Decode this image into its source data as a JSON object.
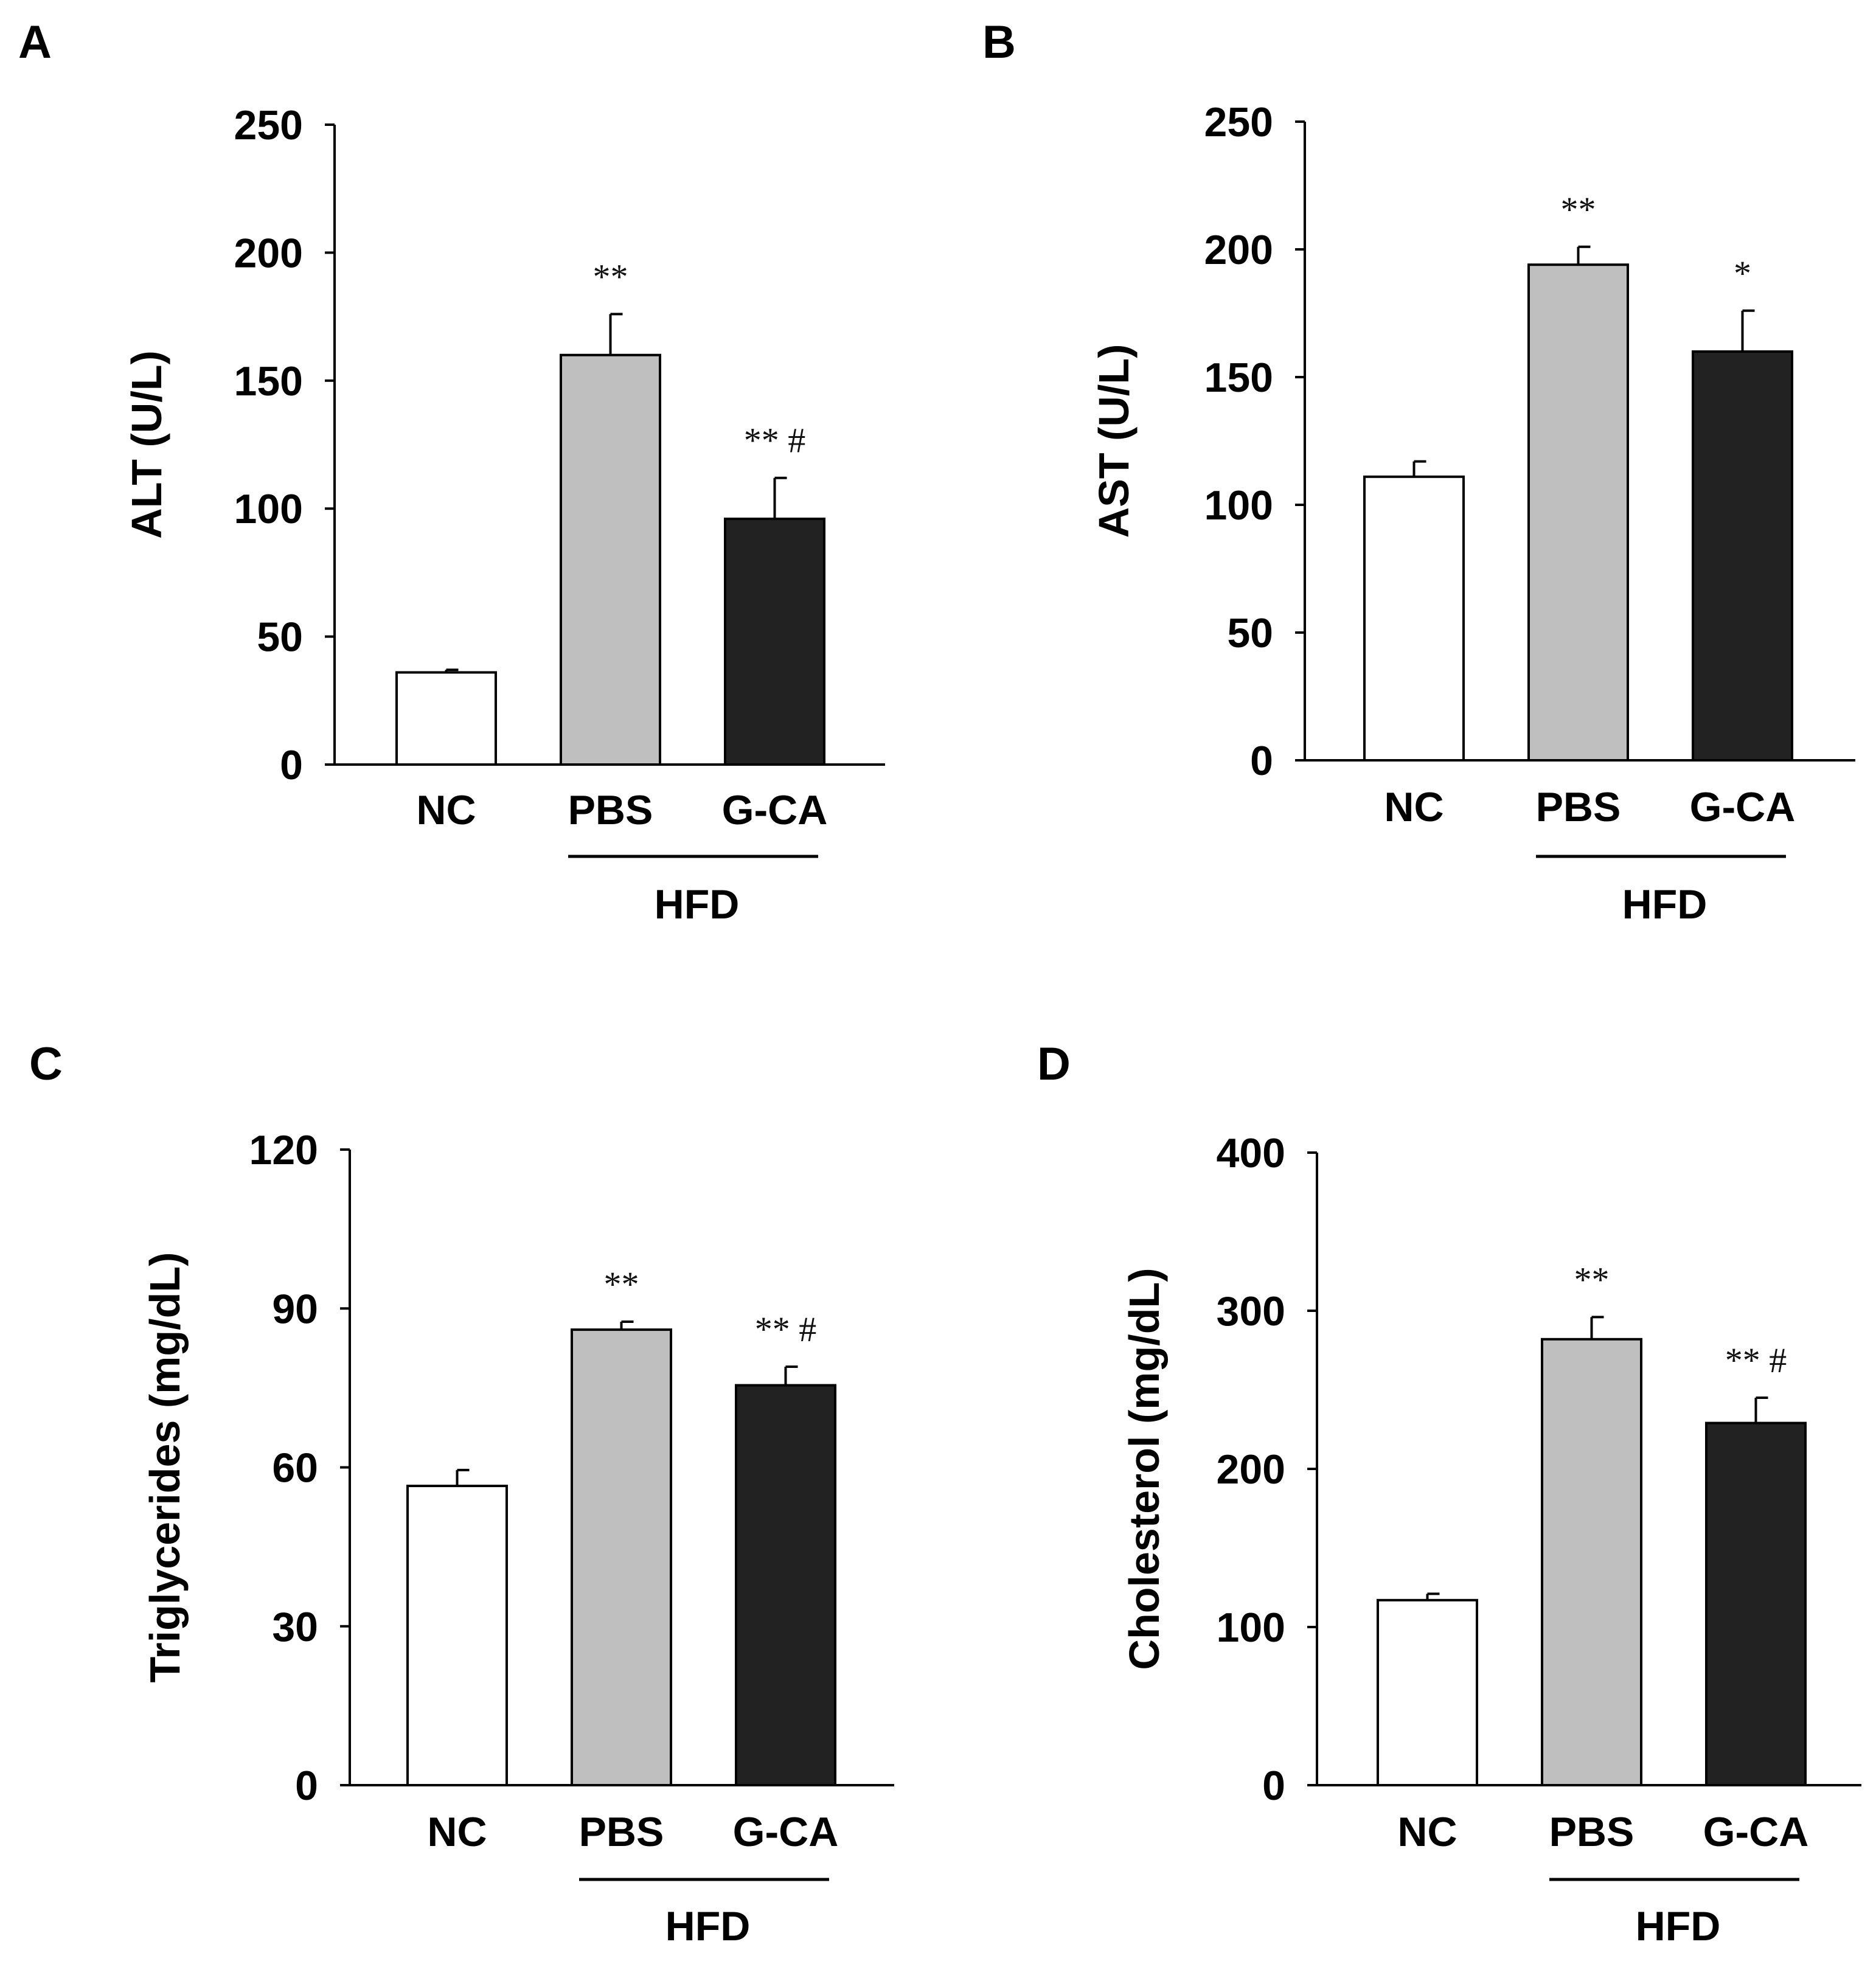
{
  "colors": {
    "NC": "#ffffff",
    "PBS": "#bfbfbf",
    "G-CA": "#222222",
    "stroke": "#000000"
  },
  "chart_data": [
    {
      "panel": "A",
      "type": "bar",
      "ylabel": "ALT (U/L)",
      "ylim": [
        0,
        250
      ],
      "yticks": [
        0,
        50,
        100,
        150,
        200,
        250
      ],
      "categories": [
        "NC",
        "PBS",
        "G-CA"
      ],
      "values": [
        36,
        160,
        96
      ],
      "errors": [
        1,
        16,
        16
      ],
      "significance": [
        "",
        "**",
        "** #"
      ],
      "group_label": "HFD",
      "group_span": [
        "PBS",
        "G-CA"
      ]
    },
    {
      "panel": "B",
      "type": "bar",
      "ylabel": "AST (U/L)",
      "ylim": [
        0,
        250
      ],
      "yticks": [
        0,
        50,
        100,
        150,
        200,
        250
      ],
      "categories": [
        "NC",
        "PBS",
        "G-CA"
      ],
      "values": [
        111,
        194,
        160
      ],
      "errors": [
        6,
        7,
        16
      ],
      "significance": [
        "",
        "**",
        "*"
      ],
      "group_label": "HFD",
      "group_span": [
        "PBS",
        "G-CA"
      ]
    },
    {
      "panel": "C",
      "type": "bar",
      "ylabel": "Triglycerides (mg/dL)",
      "ylim": [
        0,
        120
      ],
      "yticks": [
        0,
        30,
        60,
        90,
        120
      ],
      "categories": [
        "NC",
        "PBS",
        "G-CA"
      ],
      "values": [
        56.5,
        86,
        75.5
      ],
      "errors": [
        3,
        1.5,
        3.5
      ],
      "significance": [
        "",
        "**",
        "** #"
      ],
      "group_label": "HFD",
      "group_span": [
        "PBS",
        "G-CA"
      ]
    },
    {
      "panel": "D",
      "type": "bar",
      "ylabel": "Cholesterol (mg/dL)",
      "ylim": [
        0,
        400
      ],
      "yticks": [
        0,
        100,
        200,
        300,
        400
      ],
      "categories": [
        "NC",
        "PBS",
        "G-CA"
      ],
      "values": [
        117,
        282,
        229
      ],
      "errors": [
        4,
        14,
        16
      ],
      "significance": [
        "",
        "**",
        "** #"
      ],
      "group_label": "HFD",
      "group_span": [
        "PBS",
        "G-CA"
      ]
    }
  ]
}
